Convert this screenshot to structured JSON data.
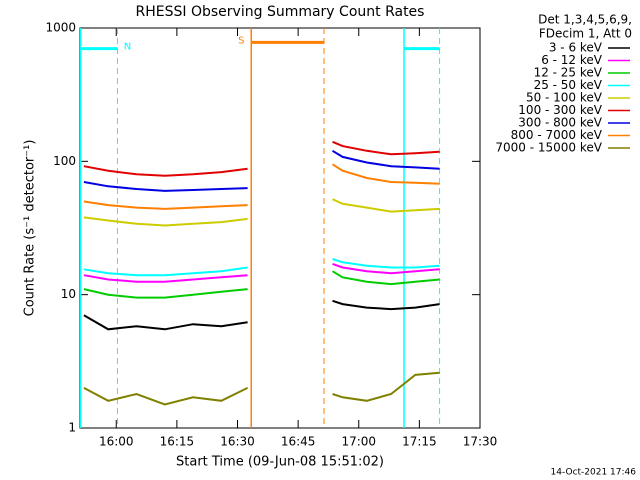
{
  "chart_data": {
    "type": "line",
    "title": "RHESSI Observing Summary Count Rates",
    "x_label": "Start Time (09-Jun-08 15:51:02)",
    "y_label": "Count Rate (s⁻¹ detector⁻¹)",
    "legend_header": [
      "Det 1,3,4,5,6,9,",
      "FDecim 1, Att 0"
    ],
    "footer": "14-Oct-2021 17:46",
    "log_y": true,
    "xlim": [
      951.03,
      1050
    ],
    "xticks": [
      {
        "value": 960,
        "label": "16:00"
      },
      {
        "value": 975,
        "label": "16:15"
      },
      {
        "value": 990,
        "label": "16:30"
      },
      {
        "value": 1005,
        "label": "16:45"
      },
      {
        "value": 1020,
        "label": "17:00"
      },
      {
        "value": 1035,
        "label": "17:15"
      },
      {
        "value": 1050,
        "label": "17:30"
      }
    ],
    "ylim": [
      1,
      1000
    ],
    "yticks": [
      1,
      10,
      100,
      1000
    ],
    "x": [
      952,
      958,
      965,
      972,
      979,
      986,
      992.5,
      null,
      1013.5,
      1016,
      1022,
      1028,
      1034,
      1040
    ],
    "series": [
      {
        "name": "3 - 6 keV",
        "color": "#000000",
        "values": [
          7,
          5.5,
          5.8,
          5.5,
          6,
          5.8,
          6.2,
          null,
          9,
          8.5,
          8,
          7.8,
          8,
          8.5
        ]
      },
      {
        "name": "6 - 12 keV",
        "color": "#ff00ff",
        "values": [
          14,
          13,
          12.5,
          12.5,
          13,
          13.5,
          14,
          null,
          17,
          16,
          15,
          14.5,
          15,
          15.5
        ]
      },
      {
        "name": "12 - 25 keV",
        "color": "#00cc00",
        "values": [
          11,
          10,
          9.5,
          9.5,
          10,
          10.5,
          11,
          null,
          15,
          13.5,
          12.5,
          12,
          12.5,
          13
        ]
      },
      {
        "name": "25 - 50 keV",
        "color": "#00ffff",
        "values": [
          15.5,
          14.5,
          14,
          14,
          14.5,
          15,
          16,
          null,
          18.5,
          17.5,
          16.5,
          16,
          16,
          16.5
        ]
      },
      {
        "name": "50 - 100 keV",
        "color": "#cccc00",
        "values": [
          38,
          36,
          34,
          33,
          34,
          35,
          37,
          null,
          52,
          48,
          45,
          42,
          43,
          44
        ]
      },
      {
        "name": "100 - 300 keV",
        "color": "#e00000",
        "values": [
          92,
          85,
          80,
          78,
          80,
          83,
          88,
          null,
          140,
          130,
          120,
          113,
          115,
          118
        ]
      },
      {
        "name": "300 - 800 keV",
        "color": "#0000e0",
        "values": [
          70,
          65,
          62,
          60,
          61,
          62,
          63,
          null,
          120,
          108,
          98,
          92,
          90,
          88
        ]
      },
      {
        "name": "800 - 7000 keV",
        "color": "#ff8000",
        "values": [
          50,
          47,
          45,
          44,
          45,
          46,
          47,
          null,
          95,
          85,
          75,
          70,
          69,
          68
        ]
      },
      {
        "name": "7000 - 15000 keV",
        "color": "#808000",
        "values": [
          2,
          1.6,
          1.8,
          1.5,
          1.7,
          1.6,
          2,
          null,
          1.8,
          1.7,
          1.6,
          1.8,
          2.5,
          2.6
        ]
      }
    ],
    "annotations": [
      {
        "label": "N",
        "color": "#00ffff",
        "start": 951.2,
        "end": 960.3,
        "level": 700
      },
      {
        "label": "S",
        "color": "#ff8000",
        "start": 993.4,
        "end": 1011.4,
        "level": 780
      },
      {
        "label": "",
        "color": "#00ffff",
        "start": 1031.2,
        "end": 1040,
        "level": 700
      }
    ]
  }
}
